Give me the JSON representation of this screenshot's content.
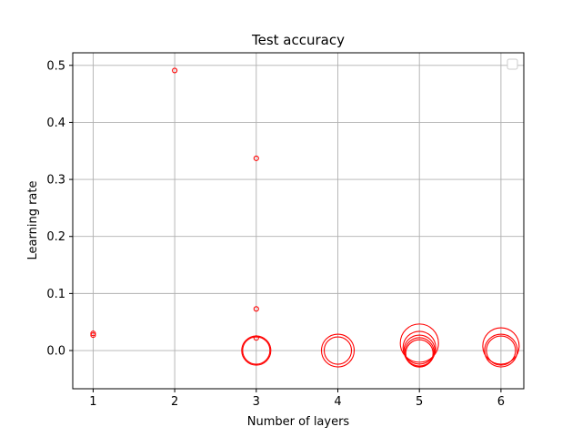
{
  "chart_data": {
    "type": "scatter",
    "title": "Test accuracy",
    "xlabel": "Number of layers",
    "ylabel": "Learning rate",
    "xlim": [
      0.75,
      6.28
    ],
    "ylim": [
      -0.067,
      0.522
    ],
    "xticks": [
      1,
      2,
      3,
      4,
      5,
      6
    ],
    "yticks": [
      0.0,
      0.1,
      0.2,
      0.3,
      0.4,
      0.5
    ],
    "ytick_labels": [
      "0.0",
      "0.1",
      "0.2",
      "0.3",
      "0.4",
      "0.5"
    ],
    "grid": true,
    "legend": {
      "placement": "top-right",
      "entries": []
    },
    "marker_color": "#ff0000",
    "marker_style": "hollow circle (size encodes test accuracy)",
    "points": [
      {
        "x": 1,
        "y": 0.03,
        "size": 2.5
      },
      {
        "x": 1,
        "y": 0.027,
        "size": 2.5
      },
      {
        "x": 2,
        "y": 0.491,
        "size": 2.5
      },
      {
        "x": 3,
        "y": 0.337,
        "size": 2.5
      },
      {
        "x": 3,
        "y": 0.073,
        "size": 2.5
      },
      {
        "x": 3,
        "y": 0.022,
        "size": 2.5
      },
      {
        "x": 3,
        "y": 0.0,
        "size": 16
      },
      {
        "x": 3,
        "y": 0.0,
        "size": 15
      },
      {
        "x": 4,
        "y": 0.0,
        "size": 18
      },
      {
        "x": 4,
        "y": 0.0,
        "size": 15
      },
      {
        "x": 5,
        "y": 0.013,
        "size": 21
      },
      {
        "x": 5,
        "y": 0.005,
        "size": 18
      },
      {
        "x": 5,
        "y": 0.0,
        "size": 17
      },
      {
        "x": 5,
        "y": -0.003,
        "size": 16
      },
      {
        "x": 5,
        "y": -0.005,
        "size": 15
      },
      {
        "x": 6,
        "y": 0.008,
        "size": 20
      },
      {
        "x": 6,
        "y": 0.0,
        "size": 18
      },
      {
        "x": 6,
        "y": 0.0,
        "size": 16
      }
    ]
  }
}
